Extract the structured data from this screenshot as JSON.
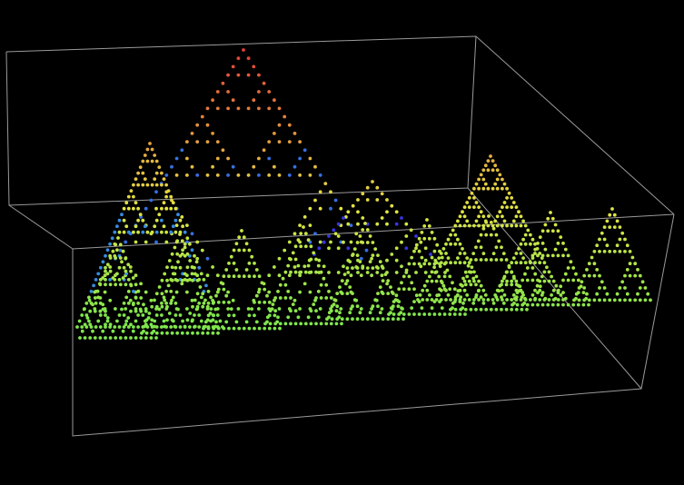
{
  "scene": {
    "background": "#000000",
    "box_color": "#9a9a9a"
  }
}
